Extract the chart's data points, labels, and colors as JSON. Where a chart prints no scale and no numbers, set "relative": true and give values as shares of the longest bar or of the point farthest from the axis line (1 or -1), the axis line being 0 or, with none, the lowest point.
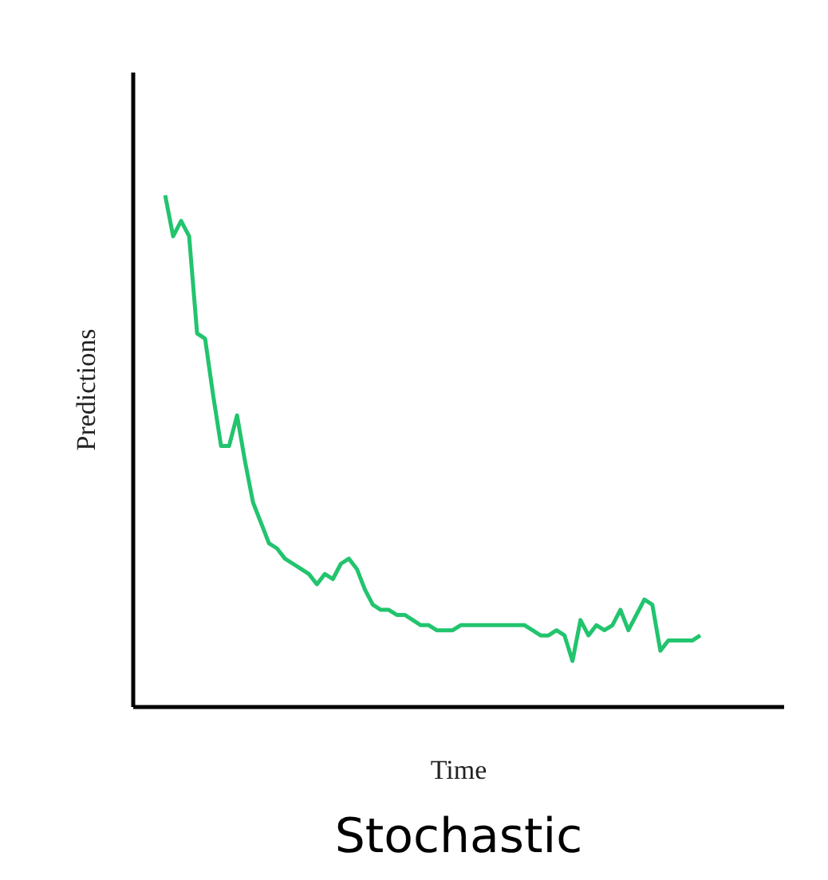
{
  "chart_data": {
    "type": "line",
    "title": "Stochastic",
    "xlabel": "Time",
    "ylabel": "Predictions",
    "relative": true,
    "categories": [
      null,
      null,
      null,
      null,
      null,
      null,
      null,
      null,
      null,
      null,
      null,
      null,
      null,
      null,
      null,
      null,
      null,
      null,
      null,
      null,
      null,
      null,
      null,
      null,
      null,
      null,
      null,
      null,
      null,
      null,
      null,
      null,
      null,
      null,
      null,
      null,
      null,
      null,
      null,
      null,
      null,
      null,
      null,
      null,
      null,
      null,
      null,
      null,
      null,
      null,
      null,
      null,
      null,
      null,
      null,
      null,
      null,
      null,
      null,
      null,
      null,
      null,
      null,
      null,
      null,
      null,
      null,
      null
    ],
    "series": [
      {
        "color": "#22c46e",
        "values": [
          1.0,
          0.92,
          0.95,
          0.92,
          0.73,
          0.72,
          0.61,
          0.51,
          0.51,
          0.57,
          0.48,
          0.4,
          0.36,
          0.32,
          0.31,
          0.29,
          0.28,
          0.27,
          0.26,
          0.24,
          0.26,
          0.25,
          0.28,
          0.29,
          0.27,
          0.23,
          0.2,
          0.19,
          0.19,
          0.18,
          0.18,
          0.17,
          0.16,
          0.16,
          0.15,
          0.15,
          0.15,
          0.16,
          0.16,
          0.16,
          0.16,
          0.16,
          0.16,
          0.16,
          0.16,
          0.16,
          0.15,
          0.14,
          0.14,
          0.15,
          0.14,
          0.09,
          0.17,
          0.14,
          0.16,
          0.15,
          0.16,
          0.19,
          0.15,
          0.18,
          0.21,
          0.2,
          0.11,
          0.13,
          0.13,
          0.13,
          0.13,
          0.14
        ]
      }
    ]
  }
}
